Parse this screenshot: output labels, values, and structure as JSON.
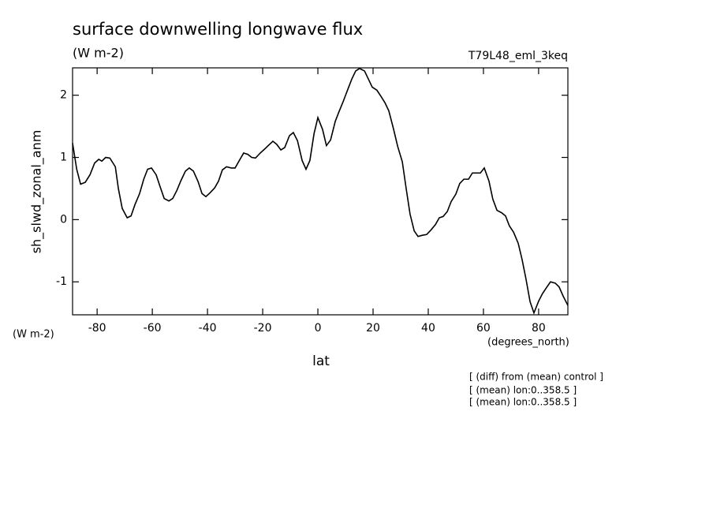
{
  "chart_data": {
    "type": "line",
    "title": "surface downwelling longwave flux",
    "subtitle": "(W m-2)",
    "dataset": "T79L48_eml_3keq",
    "y_label": "sh_slwd_zonal_anm",
    "y_units": "(W m-2)",
    "x_label": "lat",
    "x_units": "(degrees_north)",
    "notes": [
      "[ (diff) from (mean) control ]",
      "[ (mean) lon:0..358.5 ]",
      "[ (mean) lon:0..358.5 ]"
    ],
    "xlim": [
      -88.9,
      90.6
    ],
    "ylim": [
      -1.53,
      2.44
    ],
    "xticks": [
      -80,
      -60,
      -40,
      -20,
      0,
      20,
      40,
      60,
      80
    ],
    "yticks": [
      -1,
      0,
      1,
      2
    ],
    "color": "#000000",
    "x": [
      -88.9,
      -87.4,
      -86,
      -84.3,
      -82.6,
      -80.9,
      -79.4,
      -78.3,
      -76.9,
      -75.4,
      -73.4,
      -72.3,
      -70.9,
      -69.1,
      -67.7,
      -66.3,
      -64.6,
      -63.1,
      -61.7,
      -60.3,
      -58.6,
      -57.1,
      -55.7,
      -54,
      -52.6,
      -51.1,
      -49.7,
      -48,
      -46.6,
      -45.1,
      -43.4,
      -42,
      -40.6,
      -39.1,
      -37.4,
      -36,
      -34.6,
      -33.1,
      -31.4,
      -30,
      -28.6,
      -26.9,
      -25.4,
      -24,
      -22.6,
      -20.9,
      -19.4,
      -18,
      -16.3,
      -14.9,
      -13.4,
      -12,
      -10.3,
      -8.9,
      -7.4,
      -5.7,
      -4.3,
      -2.9,
      -1.4,
      0,
      1.7,
      3.1,
      4.6,
      6.3,
      7.7,
      9.1,
      10.9,
      12.3,
      13.7,
      15.1,
      16.9,
      18.3,
      19.7,
      21.4,
      22.9,
      24.3,
      25.7,
      27.4,
      28.9,
      30.6,
      32,
      33.4,
      34.9,
      36.3,
      38,
      39.4,
      40.9,
      42.6,
      44,
      45.4,
      46.9,
      48.3,
      50,
      51.4,
      52.9,
      54.6,
      56,
      57.4,
      58.9,
      60.3,
      62,
      63.4,
      64.9,
      66.6,
      68,
      69.4,
      70.9,
      72.6,
      74,
      75.4,
      76.9,
      78.3,
      80,
      81.4,
      82.9,
      84.3,
      86,
      87.4,
      88.9,
      90.6
    ],
    "values": [
      1.23,
      0.81,
      0.57,
      0.6,
      0.72,
      0.91,
      0.97,
      0.94,
      1.0,
      0.99,
      0.85,
      0.5,
      0.18,
      0.03,
      0.06,
      0.24,
      0.42,
      0.65,
      0.81,
      0.83,
      0.72,
      0.52,
      0.34,
      0.3,
      0.34,
      0.47,
      0.62,
      0.78,
      0.83,
      0.78,
      0.61,
      0.42,
      0.37,
      0.43,
      0.51,
      0.62,
      0.8,
      0.85,
      0.83,
      0.83,
      0.94,
      1.07,
      1.05,
      1.0,
      0.99,
      1.07,
      1.13,
      1.19,
      1.26,
      1.21,
      1.12,
      1.16,
      1.35,
      1.4,
      1.27,
      0.95,
      0.81,
      0.95,
      1.38,
      1.64,
      1.45,
      1.19,
      1.28,
      1.58,
      1.74,
      1.89,
      2.1,
      2.26,
      2.39,
      2.43,
      2.39,
      2.26,
      2.13,
      2.08,
      1.98,
      1.88,
      1.75,
      1.46,
      1.18,
      0.93,
      0.5,
      0.09,
      -0.18,
      -0.27,
      -0.25,
      -0.24,
      -0.17,
      -0.08,
      0.03,
      0.05,
      0.13,
      0.29,
      0.41,
      0.58,
      0.65,
      0.65,
      0.75,
      0.75,
      0.75,
      0.83,
      0.62,
      0.33,
      0.15,
      0.11,
      0.06,
      -0.1,
      -0.2,
      -0.38,
      -0.64,
      -0.95,
      -1.32,
      -1.5,
      -1.31,
      -1.19,
      -1.09,
      -1.0,
      -1.02,
      -1.08,
      -1.23,
      -1.38
    ]
  }
}
